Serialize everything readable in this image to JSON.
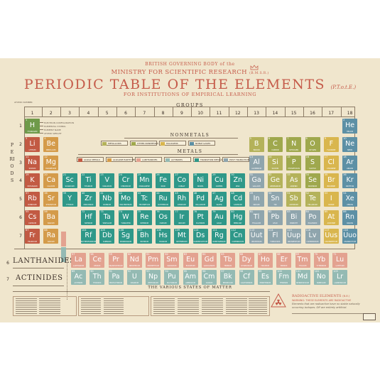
{
  "header": {
    "gov": "BRITISH GOVERNING BODY of the",
    "ministry": "MINISTRY FOR SCIENTIFIC RESEARCH",
    "ministry_abbr": "(B.M.S.R.)",
    "title": "PERIODIC TABLE OF THE ELEMENTS",
    "title_abbr": "(P.T.o.t.E.)",
    "subtitle": "FOR INSTITUTIONS OF EMPIRICAL LEARNING"
  },
  "labels": {
    "atomic_number": "ATOMIC NUMBER",
    "groups": "GROUPS",
    "periods": "PERIODS",
    "nonmetals": "NONMETALS",
    "metals": "METALS",
    "lanthanides": "LANTHANIDES",
    "actinides": "ACTINIDES",
    "states": "THE VARIOUS STATES OF MATTER",
    "radio_title": "RADIOACTIVE ELEMENTS",
    "radio_abbr": "(R.E.)",
    "radio_warn": "WARNING: THESE ELEMENTS ARE RADIOACTIVE",
    "radio_note": "Elements that are radioactive have no stable naturally occurring isotopes. Off are entirely artificial."
  },
  "key_labels": [
    "ELECTRON CONFIGURATION",
    "ELEMENTAL SYMBOL",
    "ELEMENT NAME",
    "ATOMIC WEIGHT"
  ],
  "groups": [
    "1",
    "2",
    "3",
    "4",
    "5",
    "6",
    "7",
    "8",
    "9",
    "10",
    "11",
    "12",
    "13",
    "14",
    "15",
    "16",
    "17",
    "18"
  ],
  "periods": [
    "1",
    "2",
    "3",
    "4",
    "5",
    "6",
    "7"
  ],
  "nonmetal_legend": [
    {
      "label": "METALLOIDS",
      "color": "#b4b25a"
    },
    {
      "label": "OTHER NONMETALS",
      "color": "#9fa84d"
    },
    {
      "label": "HALOGENS",
      "color": "#d9b64e"
    },
    {
      "label": "NOBLE GASES",
      "color": "#5d90a5"
    }
  ],
  "metal_legend": [
    {
      "label": "ALKALI METALS",
      "color": "#c25a43"
    },
    {
      "label": "ALKALINE EARTH METALS",
      "color": "#d49b4a"
    },
    {
      "label": "LANTHANIDES",
      "color": "#e3a290"
    },
    {
      "label": "ACTINIDES",
      "color": "#94bab3"
    },
    {
      "label": "TRANSITION METALS",
      "color": "#2f9889"
    },
    {
      "label": "POST TRANSI-TION METALS",
      "color": "#8fa5ad"
    }
  ],
  "colors": {
    "alkali": "#c25a43",
    "alkaline": "#d49b4a",
    "transition": "#2f9889",
    "post": "#8fa5ad",
    "metalloid": "#b4b25a",
    "nonmetal": "#9fa84d",
    "halogen": "#d9b64e",
    "noble": "#5d90a5",
    "lanthanide": "#e3a290",
    "actinide": "#94bab3",
    "hydrogen": "#6f9a4a",
    "title": "#c55b4a",
    "poster": "#f0e6cd"
  },
  "elements": [
    {
      "n": "1",
      "s": "H",
      "name": "HYDROGEN",
      "c": "hydrogen",
      "p": 1,
      "g": 1
    },
    {
      "n": "2",
      "s": "He",
      "name": "HELIUM",
      "c": "noble",
      "p": 1,
      "g": 18
    },
    {
      "n": "3",
      "s": "Li",
      "name": "LITHIUM",
      "c": "alkali",
      "p": 2,
      "g": 1
    },
    {
      "n": "4",
      "s": "Be",
      "name": "BERYLLIUM",
      "c": "alkaline",
      "p": 2,
      "g": 2
    },
    {
      "n": "5",
      "s": "B",
      "name": "BORON",
      "c": "metalloid",
      "p": 2,
      "g": 13
    },
    {
      "n": "6",
      "s": "C",
      "name": "CARBON",
      "c": "nonmetal",
      "p": 2,
      "g": 14
    },
    {
      "n": "7",
      "s": "N",
      "name": "NITROGEN",
      "c": "nonmetal",
      "p": 2,
      "g": 15
    },
    {
      "n": "8",
      "s": "O",
      "name": "OXYGEN",
      "c": "nonmetal",
      "p": 2,
      "g": 16
    },
    {
      "n": "9",
      "s": "F",
      "name": "FLUORINE",
      "c": "halogen",
      "p": 2,
      "g": 17
    },
    {
      "n": "10",
      "s": "Ne",
      "name": "NEON",
      "c": "noble",
      "p": 2,
      "g": 18
    },
    {
      "n": "11",
      "s": "Na",
      "name": "SODIUM",
      "c": "alkali",
      "p": 3,
      "g": 1
    },
    {
      "n": "12",
      "s": "Mg",
      "name": "MAGNESIUM",
      "c": "alkaline",
      "p": 3,
      "g": 2
    },
    {
      "n": "13",
      "s": "Al",
      "name": "ALUMINIUM",
      "c": "post",
      "p": 3,
      "g": 13
    },
    {
      "n": "14",
      "s": "Si",
      "name": "SILICON",
      "c": "metalloid",
      "p": 3,
      "g": 14
    },
    {
      "n": "15",
      "s": "P",
      "name": "PHOSPHORUS",
      "c": "nonmetal",
      "p": 3,
      "g": 15
    },
    {
      "n": "16",
      "s": "S",
      "name": "SULFUR",
      "c": "nonmetal",
      "p": 3,
      "g": 16
    },
    {
      "n": "17",
      "s": "Cl",
      "name": "CHLORINE",
      "c": "halogen",
      "p": 3,
      "g": 17
    },
    {
      "n": "18",
      "s": "Ar",
      "name": "ARGON",
      "c": "noble",
      "p": 3,
      "g": 18
    },
    {
      "n": "19",
      "s": "K",
      "name": "POTASSIUM",
      "c": "alkali",
      "p": 4,
      "g": 1
    },
    {
      "n": "20",
      "s": "Ca",
      "name": "CALCIUM",
      "c": "alkaline",
      "p": 4,
      "g": 2
    },
    {
      "n": "21",
      "s": "Sc",
      "name": "SCANDIUM",
      "c": "transition",
      "p": 4,
      "g": 3
    },
    {
      "n": "22",
      "s": "Ti",
      "name": "TITANIUM",
      "c": "transition",
      "p": 4,
      "g": 4
    },
    {
      "n": "23",
      "s": "V",
      "name": "VANADIUM",
      "c": "transition",
      "p": 4,
      "g": 5
    },
    {
      "n": "24",
      "s": "Cr",
      "name": "CHROMIUM",
      "c": "transition",
      "p": 4,
      "g": 6
    },
    {
      "n": "25",
      "s": "Mn",
      "name": "MANGANESE",
      "c": "transition",
      "p": 4,
      "g": 7
    },
    {
      "n": "26",
      "s": "Fe",
      "name": "IRON",
      "c": "transition",
      "p": 4,
      "g": 8
    },
    {
      "n": "27",
      "s": "Co",
      "name": "COBALT",
      "c": "transition",
      "p": 4,
      "g": 9
    },
    {
      "n": "28",
      "s": "Ni",
      "name": "NICKEL",
      "c": "transition",
      "p": 4,
      "g": 10
    },
    {
      "n": "29",
      "s": "Cu",
      "name": "COPPER",
      "c": "transition",
      "p": 4,
      "g": 11
    },
    {
      "n": "30",
      "s": "Zn",
      "name": "ZINC",
      "c": "transition",
      "p": 4,
      "g": 12
    },
    {
      "n": "31",
      "s": "Ga",
      "name": "GALLIUM",
      "c": "post",
      "p": 4,
      "g": 13
    },
    {
      "n": "32",
      "s": "Ge",
      "name": "GERMANIUM",
      "c": "metalloid",
      "p": 4,
      "g": 14
    },
    {
      "n": "33",
      "s": "As",
      "name": "ARSENIC",
      "c": "metalloid",
      "p": 4,
      "g": 15
    },
    {
      "n": "34",
      "s": "Se",
      "name": "SELENIUM",
      "c": "nonmetal",
      "p": 4,
      "g": 16
    },
    {
      "n": "35",
      "s": "Br",
      "name": "BROMINE",
      "c": "halogen",
      "p": 4,
      "g": 17
    },
    {
      "n": "36",
      "s": "Kr",
      "name": "KRYPTON",
      "c": "noble",
      "p": 4,
      "g": 18
    },
    {
      "n": "37",
      "s": "Rb",
      "name": "RUBIDIUM",
      "c": "alkali",
      "p": 5,
      "g": 1
    },
    {
      "n": "38",
      "s": "Sr",
      "name": "STRONTIUM",
      "c": "alkaline",
      "p": 5,
      "g": 2
    },
    {
      "n": "39",
      "s": "Y",
      "name": "YTTRIUM",
      "c": "transition",
      "p": 5,
      "g": 3
    },
    {
      "n": "40",
      "s": "Zr",
      "name": "ZIRCONIUM",
      "c": "transition",
      "p": 5,
      "g": 4
    },
    {
      "n": "41",
      "s": "Nb",
      "name": "NIOBIUM",
      "c": "transition",
      "p": 5,
      "g": 5
    },
    {
      "n": "42",
      "s": "Mo",
      "name": "MOLYBDENUM",
      "c": "transition",
      "p": 5,
      "g": 6
    },
    {
      "n": "43",
      "s": "Tc",
      "name": "TECHNETIUM",
      "c": "transition",
      "p": 5,
      "g": 7
    },
    {
      "n": "44",
      "s": "Ru",
      "name": "RUTHENIUM",
      "c": "transition",
      "p": 5,
      "g": 8
    },
    {
      "n": "45",
      "s": "Rh",
      "name": "RHODIUM",
      "c": "transition",
      "p": 5,
      "g": 9
    },
    {
      "n": "46",
      "s": "Pd",
      "name": "PALLADIUM",
      "c": "transition",
      "p": 5,
      "g": 10
    },
    {
      "n": "47",
      "s": "Ag",
      "name": "SILVER",
      "c": "transition",
      "p": 5,
      "g": 11
    },
    {
      "n": "48",
      "s": "Cd",
      "name": "CADMIUM",
      "c": "transition",
      "p": 5,
      "g": 12
    },
    {
      "n": "49",
      "s": "In",
      "name": "INDIUM",
      "c": "post",
      "p": 5,
      "g": 13
    },
    {
      "n": "50",
      "s": "Sn",
      "name": "TIN",
      "c": "post",
      "p": 5,
      "g": 14
    },
    {
      "n": "51",
      "s": "Sb",
      "name": "ANTIMONY",
      "c": "metalloid",
      "p": 5,
      "g": 15
    },
    {
      "n": "52",
      "s": "Te",
      "name": "TELLURIUM",
      "c": "metalloid",
      "p": 5,
      "g": 16
    },
    {
      "n": "53",
      "s": "I",
      "name": "IODINE",
      "c": "halogen",
      "p": 5,
      "g": 17
    },
    {
      "n": "54",
      "s": "Xe",
      "name": "XENON",
      "c": "noble",
      "p": 5,
      "g": 18
    },
    {
      "n": "55",
      "s": "Cs",
      "name": "CAESIUM",
      "c": "alkali",
      "p": 6,
      "g": 1
    },
    {
      "n": "56",
      "s": "Ba",
      "name": "BARIUM",
      "c": "alkaline",
      "p": 6,
      "g": 2
    },
    {
      "n": "72",
      "s": "Hf",
      "name": "HAFNIUM",
      "c": "transition",
      "p": 6,
      "g": 4
    },
    {
      "n": "73",
      "s": "Ta",
      "name": "TANTALUM",
      "c": "transition",
      "p": 6,
      "g": 5
    },
    {
      "n": "74",
      "s": "W",
      "name": "TUNGSTEN",
      "c": "transition",
      "p": 6,
      "g": 6
    },
    {
      "n": "75",
      "s": "Re",
      "name": "RHENIUM",
      "c": "transition",
      "p": 6,
      "g": 7
    },
    {
      "n": "76",
      "s": "Os",
      "name": "OSMIUM",
      "c": "transition",
      "p": 6,
      "g": 8
    },
    {
      "n": "77",
      "s": "Ir",
      "name": "IRIDIUM",
      "c": "transition",
      "p": 6,
      "g": 9
    },
    {
      "n": "78",
      "s": "Pt",
      "name": "PLATINUM",
      "c": "transition",
      "p": 6,
      "g": 10
    },
    {
      "n": "79",
      "s": "Au",
      "name": "GOLD",
      "c": "transition",
      "p": 6,
      "g": 11
    },
    {
      "n": "80",
      "s": "Hg",
      "name": "MERCURY",
      "c": "transition",
      "p": 6,
      "g": 12
    },
    {
      "n": "81",
      "s": "Tl",
      "name": "THALLIUM",
      "c": "post",
      "p": 6,
      "g": 13
    },
    {
      "n": "82",
      "s": "Pb",
      "name": "LEAD",
      "c": "post",
      "p": 6,
      "g": 14
    },
    {
      "n": "83",
      "s": "Bi",
      "name": "BISMUTH",
      "c": "post",
      "p": 6,
      "g": 15
    },
    {
      "n": "84",
      "s": "Po",
      "name": "POLONIUM",
      "c": "post",
      "p": 6,
      "g": 16
    },
    {
      "n": "85",
      "s": "At",
      "name": "ASTATINE",
      "c": "halogen",
      "p": 6,
      "g": 17
    },
    {
      "n": "86",
      "s": "Rn",
      "name": "RADON",
      "c": "noble",
      "p": 6,
      "g": 18
    },
    {
      "n": "87",
      "s": "Fr",
      "name": "FRANCIUM",
      "c": "alkali",
      "p": 7,
      "g": 1
    },
    {
      "n": "88",
      "s": "Ra",
      "name": "RADIUM",
      "c": "alkaline",
      "p": 7,
      "g": 2
    },
    {
      "n": "104",
      "s": "Rf",
      "name": "RUTHERFORDIUM",
      "c": "transition",
      "p": 7,
      "g": 4
    },
    {
      "n": "105",
      "s": "Db",
      "name": "DUBNIUM",
      "c": "transition",
      "p": 7,
      "g": 5
    },
    {
      "n": "106",
      "s": "Sg",
      "name": "SEABORGIUM",
      "c": "transition",
      "p": 7,
      "g": 6
    },
    {
      "n": "107",
      "s": "Bh",
      "name": "BOHRIUM",
      "c": "transition",
      "p": 7,
      "g": 7
    },
    {
      "n": "108",
      "s": "Hs",
      "name": "HASSIUM",
      "c": "transition",
      "p": 7,
      "g": 8
    },
    {
      "n": "109",
      "s": "Mt",
      "name": "MEITNERIUM",
      "c": "transition",
      "p": 7,
      "g": 9
    },
    {
      "n": "110",
      "s": "Ds",
      "name": "DARMSTADTIUM",
      "c": "transition",
      "p": 7,
      "g": 10
    },
    {
      "n": "111",
      "s": "Rg",
      "name": "ROENTGENIUM",
      "c": "transition",
      "p": 7,
      "g": 11
    },
    {
      "n": "112",
      "s": "Cn",
      "name": "COPERNICIUM",
      "c": "transition",
      "p": 7,
      "g": 12
    },
    {
      "n": "113",
      "s": "Uut",
      "name": "UNUNTRIUM",
      "c": "post",
      "p": 7,
      "g": 13
    },
    {
      "n": "114",
      "s": "Fl",
      "name": "FLEROVIUM",
      "c": "post",
      "p": 7,
      "g": 14
    },
    {
      "n": "115",
      "s": "Uup",
      "name": "UNUNPENTIUM",
      "c": "post",
      "p": 7,
      "g": 15
    },
    {
      "n": "116",
      "s": "Lv",
      "name": "LIVERMORIUM",
      "c": "post",
      "p": 7,
      "g": 16
    },
    {
      "n": "117",
      "s": "Uus",
      "name": "UNUNSEPTIUM",
      "c": "halogen",
      "p": 7,
      "g": 17
    },
    {
      "n": "118",
      "s": "Uuo",
      "name": "UNUNOCTIUM",
      "c": "noble",
      "p": 7,
      "g": 18
    }
  ],
  "lanthanides": [
    {
      "n": "57",
      "s": "La",
      "name": "LANTHANUM"
    },
    {
      "n": "58",
      "s": "Ce",
      "name": "CERIUM"
    },
    {
      "n": "59",
      "s": "Pr",
      "name": "PRASEODYMIUM"
    },
    {
      "n": "60",
      "s": "Nd",
      "name": "NEODYMIUM"
    },
    {
      "n": "61",
      "s": "Pm",
      "name": "PROMETHIUM"
    },
    {
      "n": "62",
      "s": "Sm",
      "name": "SAMARIUM"
    },
    {
      "n": "63",
      "s": "Eu",
      "name": "EUROPIUM"
    },
    {
      "n": "64",
      "s": "Gd",
      "name": "GADOLINIUM"
    },
    {
      "n": "65",
      "s": "Tb",
      "name": "TERBIUM"
    },
    {
      "n": "66",
      "s": "Dy",
      "name": "DYSPROSIUM"
    },
    {
      "n": "67",
      "s": "Ho",
      "name": "HOLMIUM"
    },
    {
      "n": "68",
      "s": "Er",
      "name": "ERBIUM"
    },
    {
      "n": "69",
      "s": "Tm",
      "name": "THULIUM"
    },
    {
      "n": "70",
      "s": "Yb",
      "name": "YTTERBIUM"
    },
    {
      "n": "71",
      "s": "Lu",
      "name": "LUTETIUM"
    }
  ],
  "actinides": [
    {
      "n": "89",
      "s": "Ac",
      "name": "ACTINIUM"
    },
    {
      "n": "90",
      "s": "Th",
      "name": "THORIUM"
    },
    {
      "n": "91",
      "s": "Pa",
      "name": "PROTACTINIUM"
    },
    {
      "n": "92",
      "s": "U",
      "name": "URANIUM"
    },
    {
      "n": "93",
      "s": "Np",
      "name": "NEPTUNIUM"
    },
    {
      "n": "94",
      "s": "Pu",
      "name": "PLUTONIUM"
    },
    {
      "n": "95",
      "s": "Am",
      "name": "AMERICIUM"
    },
    {
      "n": "96",
      "s": "Cm",
      "name": "CURIUM"
    },
    {
      "n": "97",
      "s": "Bk",
      "name": "BERKELIUM"
    },
    {
      "n": "98",
      "s": "Cf",
      "name": "CALIFORNIUM"
    },
    {
      "n": "99",
      "s": "Es",
      "name": "EINSTEINIUM"
    },
    {
      "n": "100",
      "s": "Fm",
      "name": "FERMIUM"
    },
    {
      "n": "101",
      "s": "Md",
      "name": "MENDELEVIUM"
    },
    {
      "n": "102",
      "s": "No",
      "name": "NOBELIUM"
    },
    {
      "n": "103",
      "s": "Lr",
      "name": "LAWRENCIUM"
    }
  ]
}
